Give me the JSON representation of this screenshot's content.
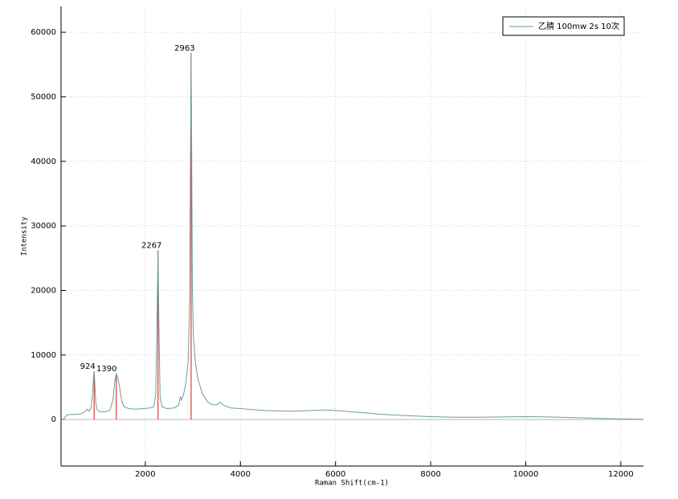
{
  "chart_data": {
    "type": "line",
    "x_label": "Raman Shift(cm-1)",
    "y_label": "Intensity",
    "xlim": [
      228,
      12475
    ],
    "ylim": [
      -7200,
      64000
    ],
    "xticks": [
      2000,
      4000,
      6000,
      8000,
      10000,
      12000
    ],
    "yticks": [
      0,
      10000,
      20000,
      30000,
      40000,
      50000,
      60000
    ],
    "grid": true,
    "legend": "top-right",
    "series": [
      {
        "name": "乙腈 100mw 2s 10次",
        "color": "#6f9c9c",
        "x": [
          280,
          350,
          450,
          550,
          650,
          720,
          780,
          820,
          860,
          890,
          910,
          924,
          940,
          960,
          990,
          1050,
          1150,
          1250,
          1320,
          1360,
          1390,
          1420,
          1460,
          1500,
          1550,
          1650,
          1800,
          1950,
          2100,
          2180,
          2220,
          2245,
          2267,
          2285,
          2310,
          2350,
          2450,
          2600,
          2700,
          2740,
          2760,
          2800,
          2850,
          2900,
          2930,
          2950,
          2963,
          2975,
          2990,
          3010,
          3050,
          3100,
          3200,
          3300,
          3400,
          3500,
          3580,
          3650,
          3800,
          4000,
          4500,
          5000,
          5500,
          5800,
          6000,
          6500,
          7000,
          7500,
          8000,
          8500,
          9000,
          9500,
          10000,
          10500,
          11000,
          11500,
          12000,
          12475
        ],
        "values": [
          100,
          700,
          800,
          800,
          900,
          1200,
          1600,
          1300,
          1800,
          4000,
          6500,
          7500,
          5500,
          2500,
          1500,
          1200,
          1200,
          1400,
          3000,
          6000,
          7100,
          6500,
          5000,
          3000,
          2000,
          1700,
          1600,
          1700,
          1800,
          2000,
          4000,
          15000,
          26200,
          15000,
          3500,
          2000,
          1700,
          1800,
          2200,
          3600,
          3000,
          3800,
          5500,
          9000,
          18000,
          40000,
          56800,
          42000,
          20000,
          13000,
          9000,
          6500,
          4000,
          2800,
          2300,
          2300,
          2700,
          2200,
          1800,
          1700,
          1400,
          1300,
          1400,
          1500,
          1400,
          1100,
          800,
          600,
          450,
          350,
          350,
          400,
          450,
          400,
          300,
          200,
          100,
          50
        ]
      }
    ],
    "peaks": {
      "color": "#e03a3a",
      "x": [
        924,
        1390,
        2267,
        2963
      ],
      "values": [
        7500,
        7100,
        26200,
        56800
      ]
    }
  }
}
